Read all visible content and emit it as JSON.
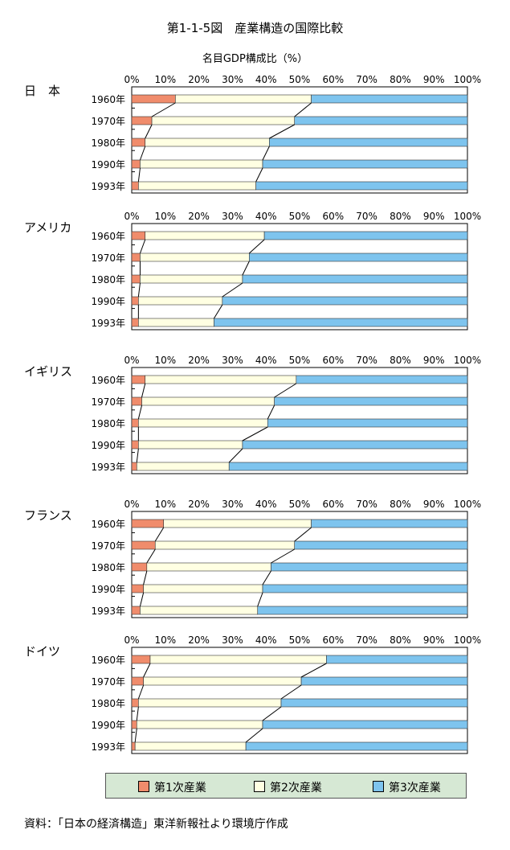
{
  "title": "第1-1-5図　産業構造の国際比較",
  "subtitle": "名目GDP構成比（%）",
  "source": "資料：「日本の経済構造」東洋新報社より環境庁作成",
  "colors": {
    "primary": "#f08c6c",
    "secondary": "#ffffe2",
    "tertiary": "#7ec4ee",
    "legend_bg": "#d6e8d4"
  },
  "legend": [
    {
      "label": "第1次産業",
      "color": "#f08c6c"
    },
    {
      "label": "第2次産業",
      "color": "#ffffe2"
    },
    {
      "label": "第3次産業",
      "color": "#7ec4ee"
    }
  ],
  "chart_data": [
    {
      "type": "bar",
      "stacked": true,
      "orientation": "horizontal",
      "country": "日　本",
      "categories": [
        "1960年",
        "1970年",
        "1980年",
        "1990年",
        "1993年"
      ],
      "x_ticks": [
        "0%",
        "10%",
        "20%",
        "30%",
        "40%",
        "50%",
        "60%",
        "70%",
        "80%",
        "90%",
        "100%"
      ],
      "xlim": [
        0,
        100
      ],
      "series": [
        {
          "name": "第1次産業",
          "values": [
            13,
            6,
            4,
            2.5,
            2
          ]
        },
        {
          "name": "第2次産業",
          "values": [
            40.5,
            42.5,
            37,
            36.5,
            35
          ]
        },
        {
          "name": "第3次産業",
          "values": [
            46.5,
            51.5,
            59,
            61,
            63
          ]
        }
      ]
    },
    {
      "type": "bar",
      "stacked": true,
      "orientation": "horizontal",
      "country": "アメリカ",
      "categories": [
        "1960年",
        "1970年",
        "1980年",
        "1990年",
        "1993年"
      ],
      "x_ticks": [
        "0%",
        "10%",
        "20%",
        "30%",
        "40%",
        "50%",
        "60%",
        "70%",
        "80%",
        "90%",
        "100%"
      ],
      "xlim": [
        0,
        100
      ],
      "series": [
        {
          "name": "第1次産業",
          "values": [
            4,
            2.5,
            2.5,
            2,
            2
          ]
        },
        {
          "name": "第2次産業",
          "values": [
            35.5,
            32.5,
            30.5,
            25,
            22.5
          ]
        },
        {
          "name": "第3次産業",
          "values": [
            60.5,
            65,
            67,
            73,
            75.5
          ]
        }
      ]
    },
    {
      "type": "bar",
      "stacked": true,
      "orientation": "horizontal",
      "country": "イギリス",
      "categories": [
        "1960年",
        "1970年",
        "1980年",
        "1990年",
        "1993年"
      ],
      "x_ticks": [
        "0%",
        "10%",
        "20%",
        "30%",
        "40%",
        "50%",
        "60%",
        "70%",
        "80%",
        "90%",
        "100%"
      ],
      "xlim": [
        0,
        100
      ],
      "series": [
        {
          "name": "第1次産業",
          "values": [
            4,
            3,
            2,
            2,
            1.5
          ]
        },
        {
          "name": "第2次産業",
          "values": [
            45,
            39.5,
            38.5,
            31,
            27.5
          ]
        },
        {
          "name": "第3次産業",
          "values": [
            51,
            57.5,
            59.5,
            67,
            71
          ]
        }
      ]
    },
    {
      "type": "bar",
      "stacked": true,
      "orientation": "horizontal",
      "country": "フランス",
      "categories": [
        "1960年",
        "1970年",
        "1980年",
        "1990年",
        "1993年"
      ],
      "x_ticks": [
        "0%",
        "10%",
        "20%",
        "30%",
        "40%",
        "50%",
        "60%",
        "70%",
        "80%",
        "90%",
        "100%"
      ],
      "xlim": [
        0,
        100
      ],
      "series": [
        {
          "name": "第1次産業",
          "values": [
            9.5,
            7,
            4.5,
            3.5,
            2.5
          ]
        },
        {
          "name": "第2次産業",
          "values": [
            44,
            41.5,
            37,
            35.5,
            35
          ]
        },
        {
          "name": "第3次産業",
          "values": [
            46.5,
            51.5,
            58.5,
            61,
            62.5
          ]
        }
      ]
    },
    {
      "type": "bar",
      "stacked": true,
      "orientation": "horizontal",
      "country": "ドイツ",
      "categories": [
        "1960年",
        "1970年",
        "1980年",
        "1990年",
        "1993年"
      ],
      "x_ticks": [
        "0%",
        "10%",
        "20%",
        "30%",
        "40%",
        "50%",
        "60%",
        "70%",
        "80%",
        "90%",
        "100%"
      ],
      "xlim": [
        0,
        100
      ],
      "series": [
        {
          "name": "第1次産業",
          "values": [
            5.5,
            3.5,
            2,
            1.5,
            1
          ]
        },
        {
          "name": "第2次産業",
          "values": [
            52.5,
            47,
            42.5,
            37.5,
            33
          ]
        },
        {
          "name": "第3次産業",
          "values": [
            42,
            49.5,
            55.5,
            61,
            66
          ]
        }
      ]
    }
  ]
}
